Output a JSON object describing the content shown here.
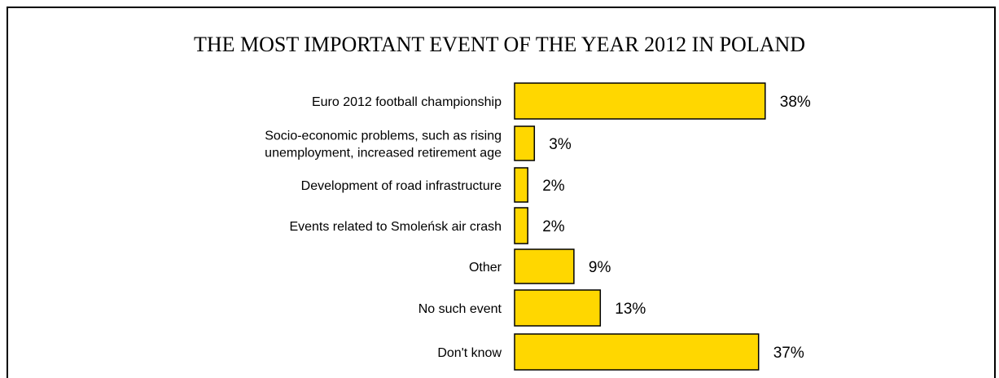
{
  "chart_data": {
    "type": "bar",
    "orientation": "horizontal",
    "title": "THE MOST IMPORTANT EVENT OF THE YEAR 2012 IN POLAND",
    "categories": [
      [
        "Euro 2012 football championship"
      ],
      [
        "Socio-economic problems, such as rising",
        "unemployment, increased retirement age"
      ],
      [
        "Development of road infrastructure"
      ],
      [
        "Events related to Smoleńsk air crash"
      ],
      [
        "Other"
      ],
      [
        "No such event"
      ],
      [
        "Don't know"
      ]
    ],
    "values": [
      38,
      3,
      2,
      2,
      9,
      13,
      37
    ],
    "value_labels": [
      "38%",
      "3%",
      "2%",
      "2%",
      "9%",
      "13%",
      "37%"
    ],
    "unit": "%",
    "xlim": [
      0,
      40
    ],
    "grid": false,
    "legend": "none",
    "bar_color": "#FFD700",
    "bar_edge_color": "#000000"
  }
}
